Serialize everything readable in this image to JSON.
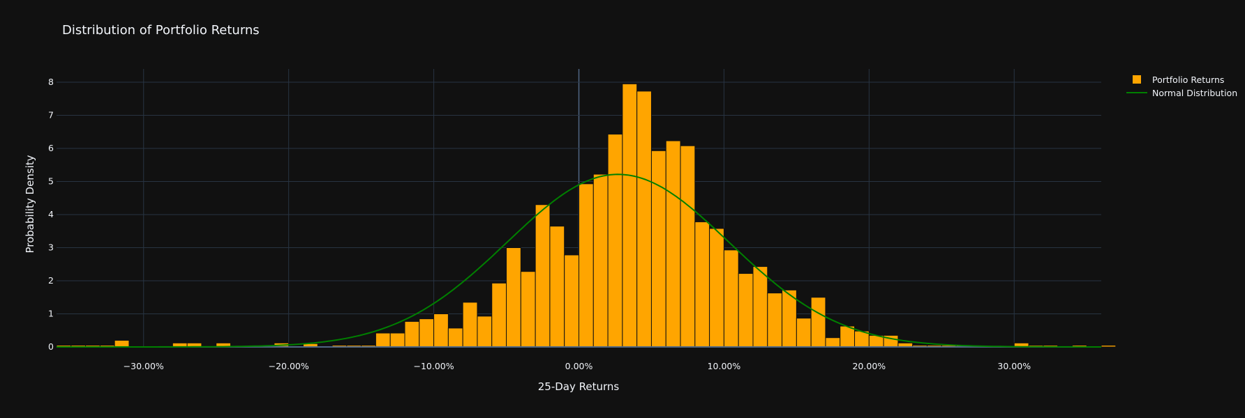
{
  "title": "Distribution of Portfolio Returns",
  "colors": {
    "background": "#111111",
    "bar": "#ffa500",
    "bar_edge": "#111111",
    "line": "#008000",
    "grid": "#283442",
    "text": "#f2f5fa"
  },
  "chart_data": {
    "type": "bar",
    "title": "Distribution of Portfolio Returns",
    "xlabel": "25-Day Returns",
    "ylabel": "Probability Density",
    "xlim": [
      -0.36,
      0.36
    ],
    "ylim": [
      0,
      8.4
    ],
    "x_ticks": [
      {
        "value": -0.3,
        "label": "−30.00%"
      },
      {
        "value": -0.2,
        "label": "−20.00%"
      },
      {
        "value": -0.1,
        "label": "−10.00%"
      },
      {
        "value": 0.0,
        "label": "0.00%"
      },
      {
        "value": 0.1,
        "label": "10.00%"
      },
      {
        "value": 0.2,
        "label": "20.00%"
      },
      {
        "value": 0.3,
        "label": "30.00%"
      }
    ],
    "y_ticks": [
      {
        "value": 0,
        "label": "0"
      },
      {
        "value": 1,
        "label": "1"
      },
      {
        "value": 2,
        "label": "2"
      },
      {
        "value": 3,
        "label": "3"
      },
      {
        "value": 4,
        "label": "4"
      },
      {
        "value": 5,
        "label": "5"
      },
      {
        "value": 6,
        "label": "6"
      },
      {
        "value": 7,
        "label": "7"
      },
      {
        "value": 8,
        "label": "8"
      }
    ],
    "grid": true,
    "legend_position": "top-right",
    "histogram": {
      "name": "Portfolio Returns",
      "bin_start": -0.36,
      "bin_width": 0.01,
      "densities": [
        0.05,
        0.05,
        0.05,
        0.05,
        0.2,
        0,
        0,
        0,
        0.12,
        0.12,
        0,
        0.12,
        0,
        0,
        0,
        0.12,
        0,
        0.1,
        0,
        0.05,
        0.05,
        0.05,
        0.42,
        0.42,
        0.77,
        0.85,
        1,
        0.57,
        1.35,
        0.93,
        1.93,
        3,
        2.28,
        4.3,
        3.65,
        2.78,
        4.93,
        5.22,
        6.43,
        7.95,
        7.73,
        5.93,
        6.23,
        6.08,
        3.78,
        3.58,
        2.93,
        2.22,
        2.43,
        1.63,
        1.72,
        0.87,
        1.5,
        0.28,
        0.63,
        0.48,
        0.35,
        0.35,
        0.12,
        0.05,
        0.05,
        0.05,
        0.05,
        0,
        0,
        0,
        0.12,
        0.05,
        0.05,
        0,
        0.05,
        0,
        0.05
      ]
    },
    "normal_curve": {
      "name": "Normal Distribution",
      "mean": 0.027,
      "std": 0.0765
    }
  }
}
